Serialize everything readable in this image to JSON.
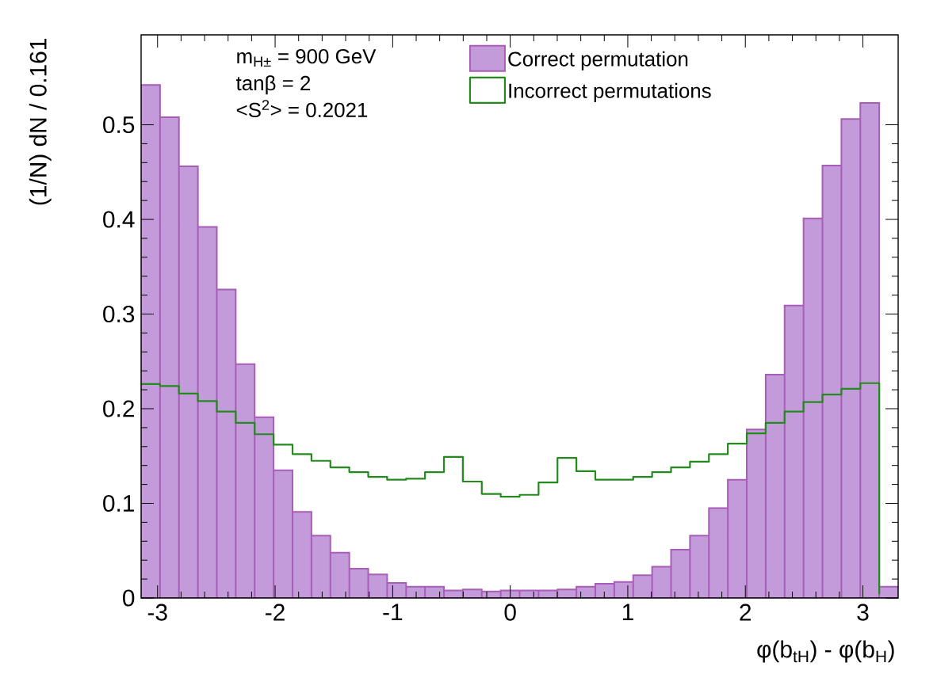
{
  "chart_data": {
    "type": "histogram",
    "xlabel": "φ(b$_{tH}$) - φ(b$_{H}$)",
    "ylabel": "(1/N) dN / 0.161",
    "annotations": [
      "m$_{H±}$ = 900 GeV",
      "tanβ = 2",
      "<S$^{2}$> = 0.2021"
    ],
    "bins": [
      -3.14,
      -2.979,
      -2.818,
      -2.657,
      -2.496,
      -2.335,
      -2.174,
      -2.013,
      -1.852,
      -1.691,
      -1.53,
      -1.369,
      -1.208,
      -1.047,
      -0.886,
      -0.725,
      -0.564,
      -0.403,
      -0.242,
      -0.081,
      0.08,
      0.241,
      0.402,
      0.563,
      0.724,
      0.885,
      1.046,
      1.207,
      1.368,
      1.529,
      1.69,
      1.851,
      2.012,
      2.173,
      2.334,
      2.495,
      2.656,
      2.817,
      2.978,
      3.139,
      3.3
    ],
    "series": [
      {
        "name": "Correct permutation",
        "color": "#c39bdb",
        "values": [
          0.542,
          0.508,
          0.456,
          0.392,
          0.326,
          0.247,
          0.191,
          0.135,
          0.091,
          0.066,
          0.048,
          0.031,
          0.025,
          0.016,
          0.012,
          0.012,
          0.008,
          0.009,
          0.007,
          0.008,
          0.008,
          0.008,
          0.009,
          0.012,
          0.015,
          0.017,
          0.024,
          0.033,
          0.051,
          0.066,
          0.095,
          0.125,
          0.178,
          0.236,
          0.309,
          0.401,
          0.457,
          0.506,
          0.523,
          0.012
        ]
      },
      {
        "name": "Incorrect permutations",
        "type": "step",
        "color": "#238b1c",
        "x": [
          -3.14,
          -2.979,
          -2.818,
          -2.657,
          -2.496,
          -2.335,
          -2.174,
          -2.013,
          -1.852,
          -1.691,
          -1.53,
          -1.369,
          -1.208,
          -1.047,
          -0.886,
          -0.725,
          -0.564,
          -0.403,
          -0.242,
          -0.081,
          0.08,
          0.241,
          0.402,
          0.563,
          0.724,
          0.885,
          1.046,
          1.207,
          1.368,
          1.529,
          1.69,
          1.851,
          2.012,
          2.173,
          2.334,
          2.495,
          2.656,
          2.817,
          2.978,
          3.139
        ],
        "values": [
          0.226,
          0.224,
          0.216,
          0.208,
          0.197,
          0.185,
          0.173,
          0.162,
          0.152,
          0.145,
          0.138,
          0.133,
          0.128,
          0.125,
          0.126,
          0.133,
          0.149,
          0.123,
          0.11,
          0.107,
          0.109,
          0.122,
          0.148,
          0.134,
          0.125,
          0.125,
          0.128,
          0.133,
          0.138,
          0.144,
          0.152,
          0.163,
          0.174,
          0.185,
          0.197,
          0.207,
          0.215,
          0.221,
          0.227,
          0.004
        ]
      }
    ],
    "xlim": [
      -3.14,
      3.3
    ],
    "ylim": [
      0,
      0.595
    ],
    "xticks": [
      -3,
      -2,
      -1,
      0,
      1,
      2,
      3
    ],
    "yticks": [
      0,
      0.1,
      0.2,
      0.3,
      0.4,
      0.5
    ],
    "legend": "top"
  }
}
